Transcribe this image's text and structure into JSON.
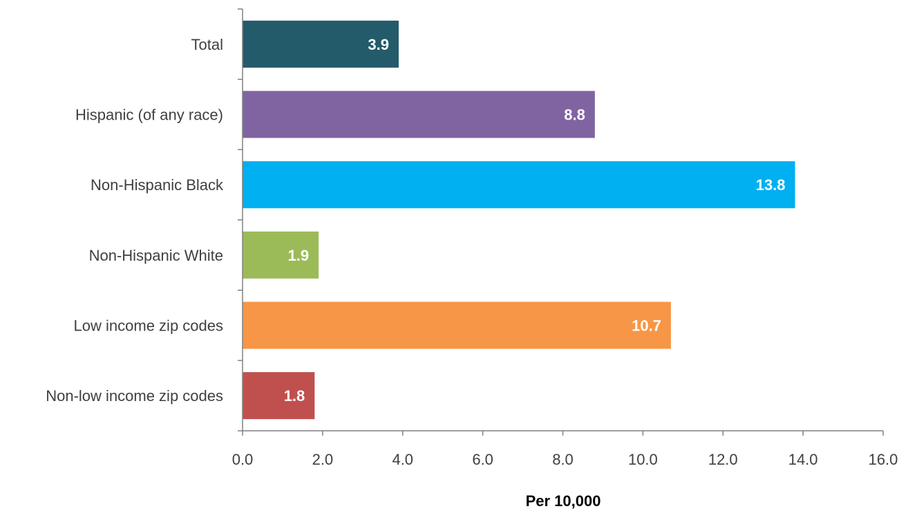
{
  "chart_data": {
    "type": "bar",
    "orientation": "horizontal",
    "categories": [
      "Total",
      "Hispanic (of any race)",
      "Non-Hispanic Black",
      "Non-Hispanic White",
      "Low income zip codes",
      "Non-low income zip codes"
    ],
    "values": [
      3.9,
      8.8,
      13.8,
      1.9,
      10.7,
      1.8
    ],
    "value_labels": [
      "3.9",
      "8.8",
      "13.8",
      "1.9",
      "10.7",
      "1.8"
    ],
    "bar_colors": [
      "#235b6a",
      "#8064a2",
      "#00b0f0",
      "#9bbb59",
      "#f79646",
      "#c0504d"
    ],
    "xlabel": "Per 10,000",
    "xlim": [
      0,
      16
    ],
    "x_ticks": [
      0,
      2,
      4,
      6,
      8,
      10,
      12,
      14,
      16
    ],
    "x_tick_labels": [
      "0.0",
      "2.0",
      "4.0",
      "6.0",
      "8.0",
      "10.0",
      "12.0",
      "14.0",
      "16.0"
    ],
    "grid": false,
    "legend": "none"
  }
}
